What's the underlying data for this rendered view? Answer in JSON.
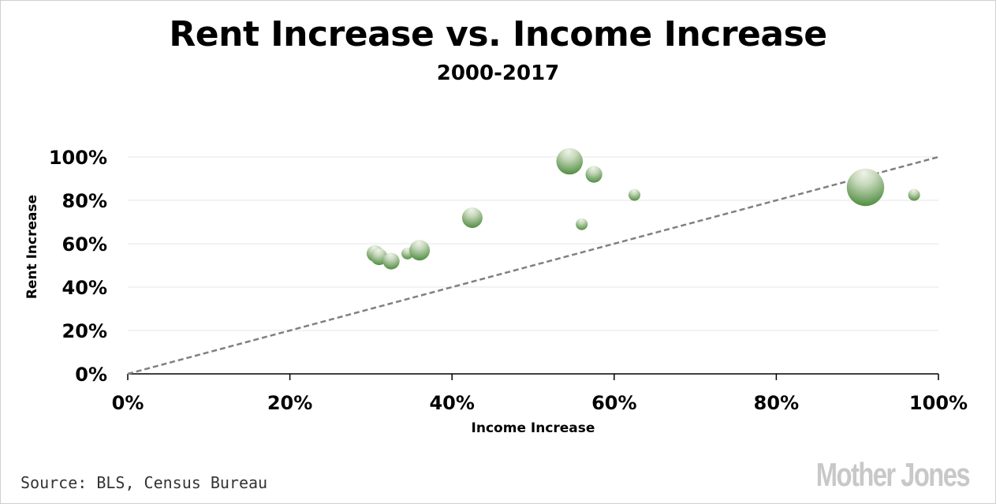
{
  "chart_data": {
    "type": "scatter",
    "title": "Rent Increase vs. Income Increase",
    "subtitle": "2000-2017",
    "xlabel": "Income Increase",
    "ylabel": "Rent Increase",
    "xlim": [
      0,
      100
    ],
    "ylim": [
      0,
      100
    ],
    "x_ticks": [
      "0%",
      "20%",
      "40%",
      "60%",
      "80%",
      "100%"
    ],
    "y_ticks": [
      "0%",
      "20%",
      "40%",
      "60%",
      "80%",
      "100%"
    ],
    "grid": "horizontal",
    "reference_line": {
      "style": "dashed",
      "from": [
        0,
        0
      ],
      "to": [
        100,
        100
      ]
    },
    "points": [
      {
        "x": 30.5,
        "y": 55.5,
        "size": 2
      },
      {
        "x": 31.0,
        "y": 54.0,
        "size": 2
      },
      {
        "x": 32.5,
        "y": 52.0,
        "size": 2
      },
      {
        "x": 34.5,
        "y": 55.5,
        "size": 1
      },
      {
        "x": 36.0,
        "y": 57.0,
        "size": 3
      },
      {
        "x": 42.5,
        "y": 72.0,
        "size": 3
      },
      {
        "x": 54.5,
        "y": 98.0,
        "size": 5
      },
      {
        "x": 56.0,
        "y": 69.0,
        "size": 1
      },
      {
        "x": 57.5,
        "y": 92.0,
        "size": 2
      },
      {
        "x": 62.5,
        "y": 82.5,
        "size": 1
      },
      {
        "x": 91.0,
        "y": 86.0,
        "size": 10
      },
      {
        "x": 97.0,
        "y": 82.5,
        "size": 1
      }
    ],
    "colors": {
      "bubble_light": "#eef3e8",
      "bubble_dark": "#4b8a3b",
      "reference_line": "#808080",
      "grid": "#e6e6e6"
    }
  },
  "footer": {
    "source": "Source: BLS, Census Bureau",
    "logo": "MotherJones"
  }
}
